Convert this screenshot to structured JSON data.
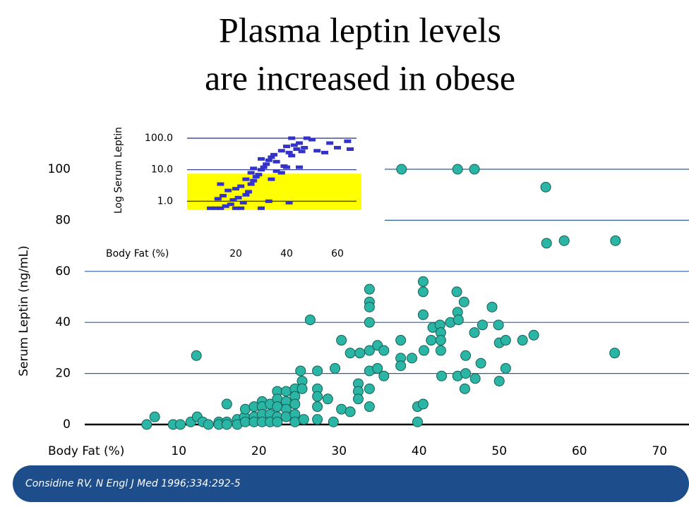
{
  "chart_data": [
    {
      "type": "scatter",
      "title": [
        "Plasma leptin levels",
        "are increased in obese"
      ],
      "xlabel": "Body Fat (%)",
      "ylabel": "Serum Leptin (ng/mL)",
      "xlim": [
        -2,
        73.5
      ],
      "ylim": [
        0,
        100
      ],
      "xticks": [
        10,
        20,
        30,
        40,
        50,
        60,
        70
      ],
      "yticks": [
        0,
        20,
        40,
        60,
        80,
        100
      ],
      "grid": true,
      "color": "#2bb5a5",
      "x": [
        6,
        7,
        9.3,
        10.2,
        11.5,
        12.2,
        12.3,
        13,
        13.7,
        15,
        15,
        16,
        16,
        16,
        17.3,
        17.3,
        18.2,
        18.3,
        18.3,
        19.4,
        19.4,
        19.4,
        20.4,
        20.4,
        20.4,
        20.4,
        21.4,
        21.4,
        21.4,
        22.3,
        22.3,
        22.3,
        22.3,
        22.3,
        23.4,
        23.4,
        23.4,
        23.4,
        24.5,
        24.5,
        24.5,
        24.5,
        24.5,
        25.2,
        25.4,
        25.4,
        25.6,
        26.4,
        27.3,
        27.3,
        27.3,
        27.3,
        27.3,
        28.6,
        29.3,
        29.5,
        30.3,
        30.3,
        31.4,
        31.4,
        32.4,
        32.4,
        32.4,
        32.6,
        33.8,
        33.8,
        33.8,
        33.8,
        33.8,
        33.8,
        33.8,
        33.8,
        34.8,
        34.8,
        35.6,
        35.6,
        37.7,
        37.7,
        37.7,
        39.1,
        39.8,
        39.8,
        40.5,
        40.5,
        40.5,
        40.5,
        40.6,
        41.5,
        41.7,
        42.6,
        42.7,
        42.7,
        42.7,
        42.8,
        43.9,
        44.7,
        44.8,
        44.8,
        44.9,
        45.6,
        45.8,
        45.8,
        45.7,
        46.9,
        47,
        47.9,
        47.7,
        49.1,
        49.9,
        50,
        50,
        50.8,
        50.8,
        52.9,
        54.3,
        55.8,
        55.9,
        58.1,
        64.5,
        64.4,
        37.8,
        44.8,
        46.9
      ],
      "values": [
        0,
        3,
        0,
        0,
        1,
        27,
        3,
        1,
        0,
        1,
        0,
        1,
        8,
        0,
        2,
        0,
        3,
        6,
        1,
        7,
        3,
        1,
        9,
        7,
        4,
        1,
        8,
        4,
        1,
        13,
        10,
        7,
        3,
        1,
        13,
        9,
        6,
        3,
        14,
        11,
        8,
        4,
        1,
        21,
        17,
        14,
        2,
        41,
        21,
        14,
        11,
        7,
        2,
        10,
        1,
        22,
        33,
        6,
        28,
        5,
        16,
        13,
        10,
        28,
        53,
        48,
        46,
        40,
        29,
        21,
        14,
        7,
        31,
        22,
        29,
        19,
        33,
        26,
        23,
        26,
        1,
        7,
        8,
        56,
        52,
        43,
        29,
        33,
        38,
        39,
        36,
        33,
        29,
        19,
        40,
        52,
        44,
        19,
        41,
        48,
        27,
        20,
        14,
        36,
        18,
        39,
        24,
        46,
        39,
        32,
        17,
        22,
        33,
        33,
        35,
        93,
        71,
        72,
        72,
        28,
        100,
        100,
        100
      ]
    },
    {
      "type": "scatter",
      "log_y": true,
      "xlabel": "Body Fat (%)",
      "ylabel": "Log Serum Leptin",
      "xlim": [
        0,
        67.5
      ],
      "ylim": [
        0.55,
        100
      ],
      "xticks": [
        20,
        40,
        60
      ],
      "yticks": [
        {
          "value": 1,
          "label": "1.0"
        },
        {
          "value": 10,
          "label": "10.0"
        },
        {
          "value": 100,
          "label": "100.0"
        }
      ],
      "grid": true,
      "color": "#3333cc",
      "shaded_range": [
        0.55,
        7.5
      ],
      "shaded_color": "#ffff00",
      "x": [
        12,
        14,
        16,
        13,
        15,
        18,
        20,
        22,
        19,
        21,
        23,
        17,
        20,
        24,
        25,
        22,
        26,
        27,
        24,
        28,
        26,
        29,
        30,
        31,
        27,
        32,
        33,
        30,
        34,
        35,
        36,
        38,
        39,
        40,
        41,
        42,
        43,
        44,
        45,
        46,
        47,
        48,
        50,
        52,
        55,
        57,
        60,
        64,
        65,
        40,
        38,
        41,
        10,
        14,
        42,
        36,
        34,
        33,
        30,
        45
      ],
      "values": [
        0.6,
        0.6,
        0.7,
        1.2,
        1.5,
        0.8,
        0.6,
        0.6,
        1.1,
        1.3,
        0.9,
        2.2,
        2.5,
        1.6,
        2,
        3,
        3.5,
        4.5,
        5,
        6,
        8,
        7,
        10,
        12,
        11,
        15,
        20,
        22,
        25,
        30,
        18,
        40,
        13,
        55,
        35,
        28,
        60,
        45,
        70,
        38,
        50,
        100,
        90,
        40,
        35,
        70,
        50,
        80,
        45,
        12,
        8,
        0.9,
        0.6,
        3.5,
        100,
        9,
        5,
        1,
        0.6,
        12
      ]
    }
  ],
  "citation": "Considine RV, N Engl J Med 1996;334:292-5"
}
